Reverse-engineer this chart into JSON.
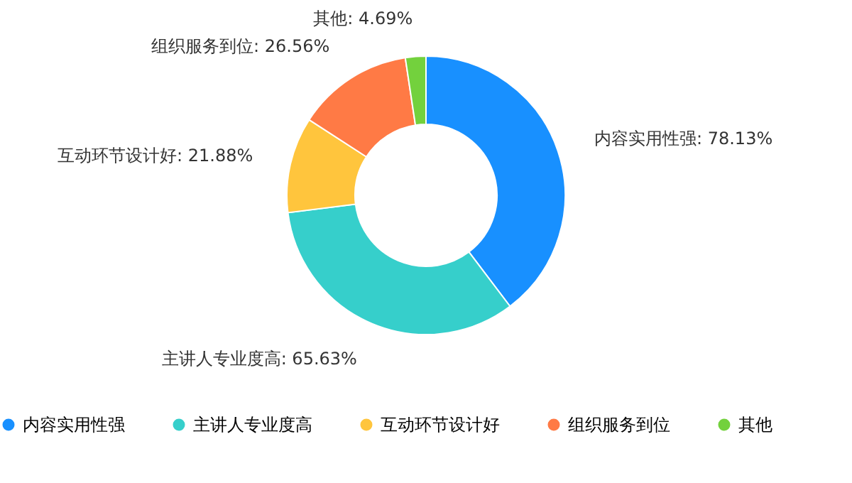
{
  "chart_data": {
    "type": "donut",
    "categories": [
      "内容实用性强",
      "主讲人专业度高",
      "互动环节设计好",
      "组织服务到位",
      "其他"
    ],
    "values": [
      78.13,
      65.63,
      21.88,
      26.56,
      4.69
    ],
    "colors": [
      "#1890ff",
      "#36cfcb",
      "#ffc53d",
      "#ff7a45",
      "#73d13d"
    ],
    "value_labels": [
      "内容实用性强: 78.13%",
      "主讲人专业度高: 65.63%",
      "互动环节设计好: 21.88%",
      "组织服务到位: 26.56%",
      "其他: 4.69%"
    ],
    "legend": "bottom"
  }
}
